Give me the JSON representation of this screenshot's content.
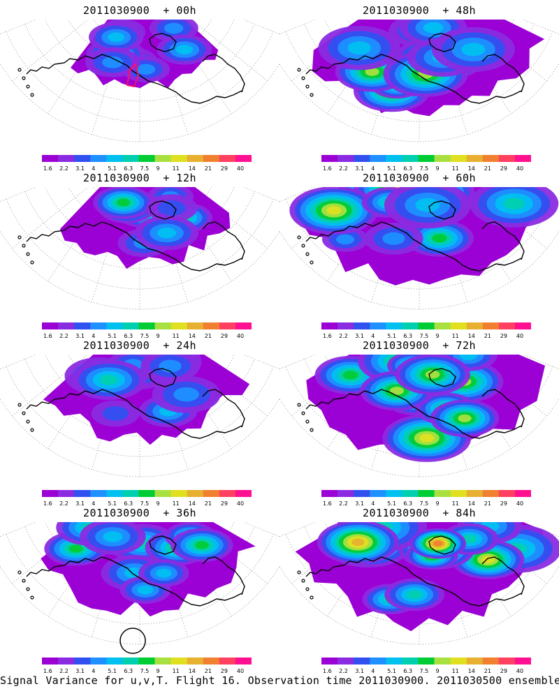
{
  "panels": [
    {
      "title": "2011030900  + 00h",
      "lead_hours": 0,
      "spread": 0.25,
      "peak": 6
    },
    {
      "title": "2011030900  + 48h",
      "lead_hours": 48,
      "spread": 0.85,
      "peak": 9
    },
    {
      "title": "2011030900  + 12h",
      "lead_hours": 12,
      "spread": 0.45,
      "peak": 7
    },
    {
      "title": "2011030900  + 60h",
      "lead_hours": 60,
      "spread": 0.92,
      "peak": 9
    },
    {
      "title": "2011030900  + 24h",
      "lead_hours": 24,
      "spread": 0.6,
      "peak": 7
    },
    {
      "title": "2011030900  + 72h",
      "lead_hours": 72,
      "spread": 0.97,
      "peak": 10
    },
    {
      "title": "2011030900  + 36h",
      "lead_hours": 36,
      "spread": 0.72,
      "peak": 7
    },
    {
      "title": "2011030900  + 84h",
      "lead_hours": 84,
      "spread": 1.0,
      "peak": 11
    }
  ],
  "colorbar": {
    "colors": [
      "#9b00d4",
      "#8a2be2",
      "#3050f0",
      "#1e90ff",
      "#00c0f0",
      "#00d0b0",
      "#00cc33",
      "#a8e040",
      "#e0e020",
      "#e8b030",
      "#f08030",
      "#ff4060",
      "#ff1090"
    ],
    "tick_labels": [
      "1.6",
      "2.2",
      "3.1",
      "4",
      "5.1",
      "6.3",
      "7.5",
      "9",
      "11",
      "14",
      "21",
      "29",
      "40"
    ]
  },
  "caption": "Signal Variance for u,v,T. Flight 16. Observation time 2011030900. 2011030500 ensemble."
}
